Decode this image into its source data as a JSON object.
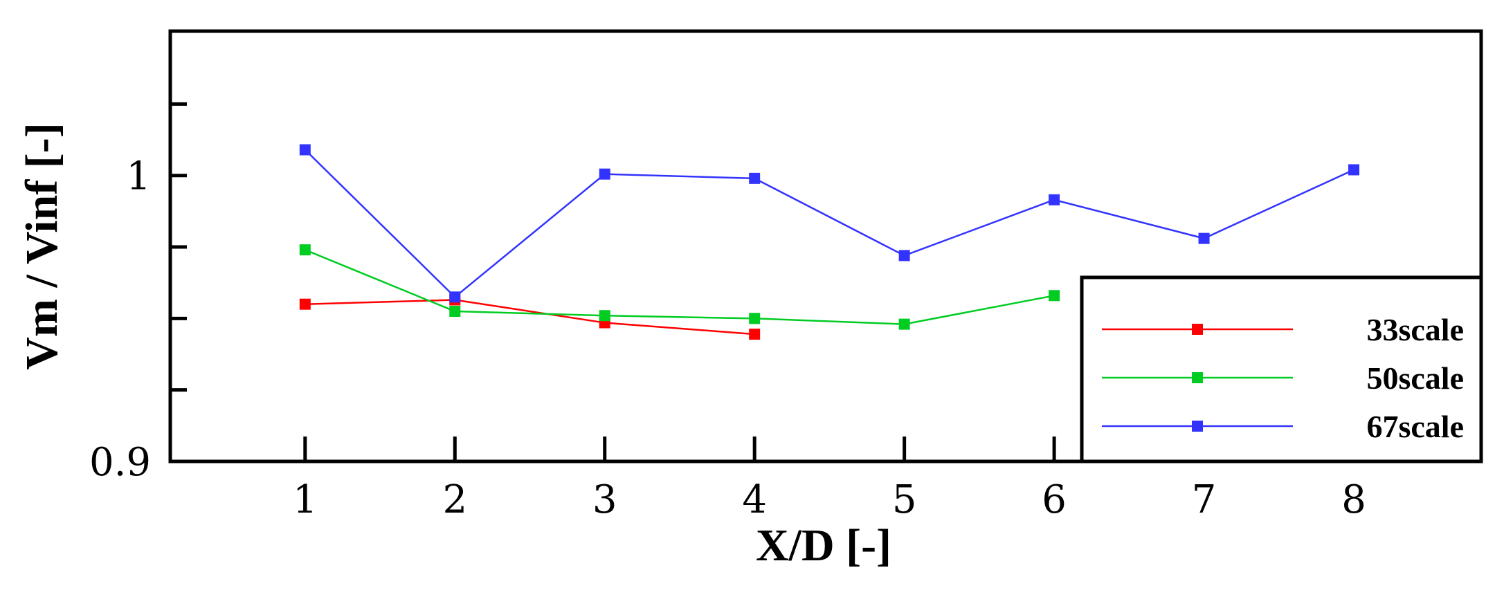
{
  "chart_data": {
    "type": "line",
    "xlabel": "X/D [-]",
    "ylabel": "Vm / Vinf [-]",
    "xlim": [
      0.1,
      8.85
    ],
    "ylim": [
      0.9,
      1.0505
    ],
    "x_ticks": [
      1,
      2,
      3,
      4,
      5,
      6,
      7,
      8
    ],
    "y_ticks": [
      0.9,
      0.925,
      0.95,
      0.975,
      1.0,
      1.025
    ],
    "y_tick_labels": [
      "0.9",
      "",
      "",
      "",
      "1",
      ""
    ],
    "grid": false,
    "legend_position": "bottom-right",
    "series": [
      {
        "name": "33scale",
        "color": "#ff0000",
        "x": [
          1,
          2,
          3,
          4
        ],
        "y": [
          0.955,
          0.9565,
          0.9485,
          0.9445
        ]
      },
      {
        "name": "50scale",
        "color": "#00cc22",
        "x": [
          1,
          2,
          3,
          4,
          5,
          6
        ],
        "y": [
          0.974,
          0.9525,
          0.951,
          0.95,
          0.948,
          0.958
        ]
      },
      {
        "name": "67scale",
        "color": "#3333ff",
        "x": [
          1,
          2,
          3,
          4,
          5,
          6,
          7,
          8
        ],
        "y": [
          1.009,
          0.9575,
          1.0005,
          0.999,
          0.972,
          0.9915,
          0.978,
          1.002
        ]
      }
    ]
  }
}
